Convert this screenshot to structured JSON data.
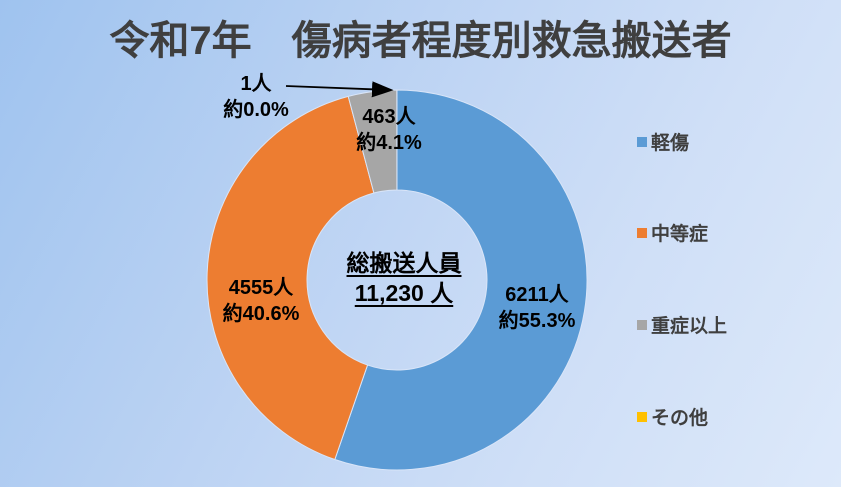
{
  "chart_data": {
    "type": "pie",
    "donut": true,
    "title": "令和7年　傷病者程度別救急搬送者",
    "total": 11230,
    "center_label": {
      "heading": "総搬送人員",
      "value": "11,230 人"
    },
    "series": [
      {
        "key": "minor",
        "name": "軽傷",
        "value": 6211,
        "value_label": "6211人",
        "pct_label": "約55.3%",
        "color": "#5B9BD5"
      },
      {
        "key": "moderate",
        "name": "中等症",
        "value": 4555,
        "value_label": "4555人",
        "pct_label": "約40.6%",
        "color": "#ED7D31"
      },
      {
        "key": "severe",
        "name": "重症以上",
        "value": 463,
        "value_label": "463人",
        "pct_label": "約4.1%",
        "color": "#A6A6A6"
      },
      {
        "key": "other",
        "name": "その他",
        "value": 1,
        "value_label": "1人",
        "pct_label": "約0.0%",
        "color": "#FFC000"
      }
    ],
    "legend_position": "right",
    "background_gradient": {
      "from": "#9fc3ef",
      "to": "#dde9fa"
    },
    "title_color": "#3f3f3f",
    "label_color": "#000000",
    "callout_arrow_color": "#000000"
  }
}
